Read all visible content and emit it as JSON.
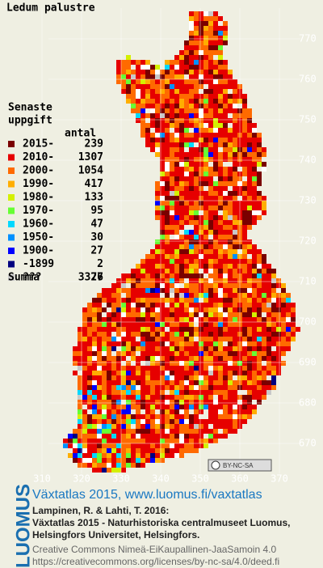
{
  "map": {
    "title": "Ledum palustre",
    "legend": {
      "heading": [
        "Senaste",
        "uppgift"
      ],
      "count_heading": "antal",
      "rows": [
        {
          "label": "2015-",
          "count": "239",
          "color": "#7a0000"
        },
        {
          "label": "2010-",
          "count": "1307",
          "color": "#e60000"
        },
        {
          "label": "2000-",
          "count": "1054",
          "color": "#ff6a00"
        },
        {
          "label": "1990-",
          "count": "417",
          "color": "#ffae00"
        },
        {
          "label": "1980-",
          "count": "133",
          "color": "#d4f000"
        },
        {
          "label": "1970-",
          "count": "95",
          "color": "#66ff33"
        },
        {
          "label": "1960-",
          "count": "47",
          "color": "#00d8ff"
        },
        {
          "label": "1950-",
          "count": "30",
          "color": "#0090ff"
        },
        {
          "label": "1900-",
          "count": "27",
          "color": "#0000ff"
        },
        {
          "label": "-1899",
          "count": "2",
          "color": "#000080"
        },
        {
          "label": "???",
          "count": "26",
          "color": "#c8c8c8"
        }
      ],
      "total_label": "Summa",
      "total": "3377"
    },
    "yticks": [
      "770",
      "760",
      "750",
      "740",
      "730",
      "720",
      "710",
      "700",
      "690",
      "680",
      "670"
    ],
    "xticks": [
      "310",
      "320",
      "330",
      "340",
      "350",
      "360",
      "370"
    ],
    "badge": "BY-NC-SA"
  },
  "footer": {
    "logo": "LUOMUS",
    "link": "Växtatlas 2015, www.luomus.fi/vaxtatlas",
    "citation": [
      "Lampinen, R. & Lahti, T. 2016:",
      "Växtatlas 2015 - Naturhistoriska centralmuseet Luomus,",
      "Helsingfors Universitet, Helsingfors."
    ],
    "license": [
      "Creative Commons Nimeä-EiKaupallinen-JaaSamoin 4.0",
      "https://creativecommons.org/licenses/by-nc-sa/4.0/deed.fi"
    ]
  }
}
